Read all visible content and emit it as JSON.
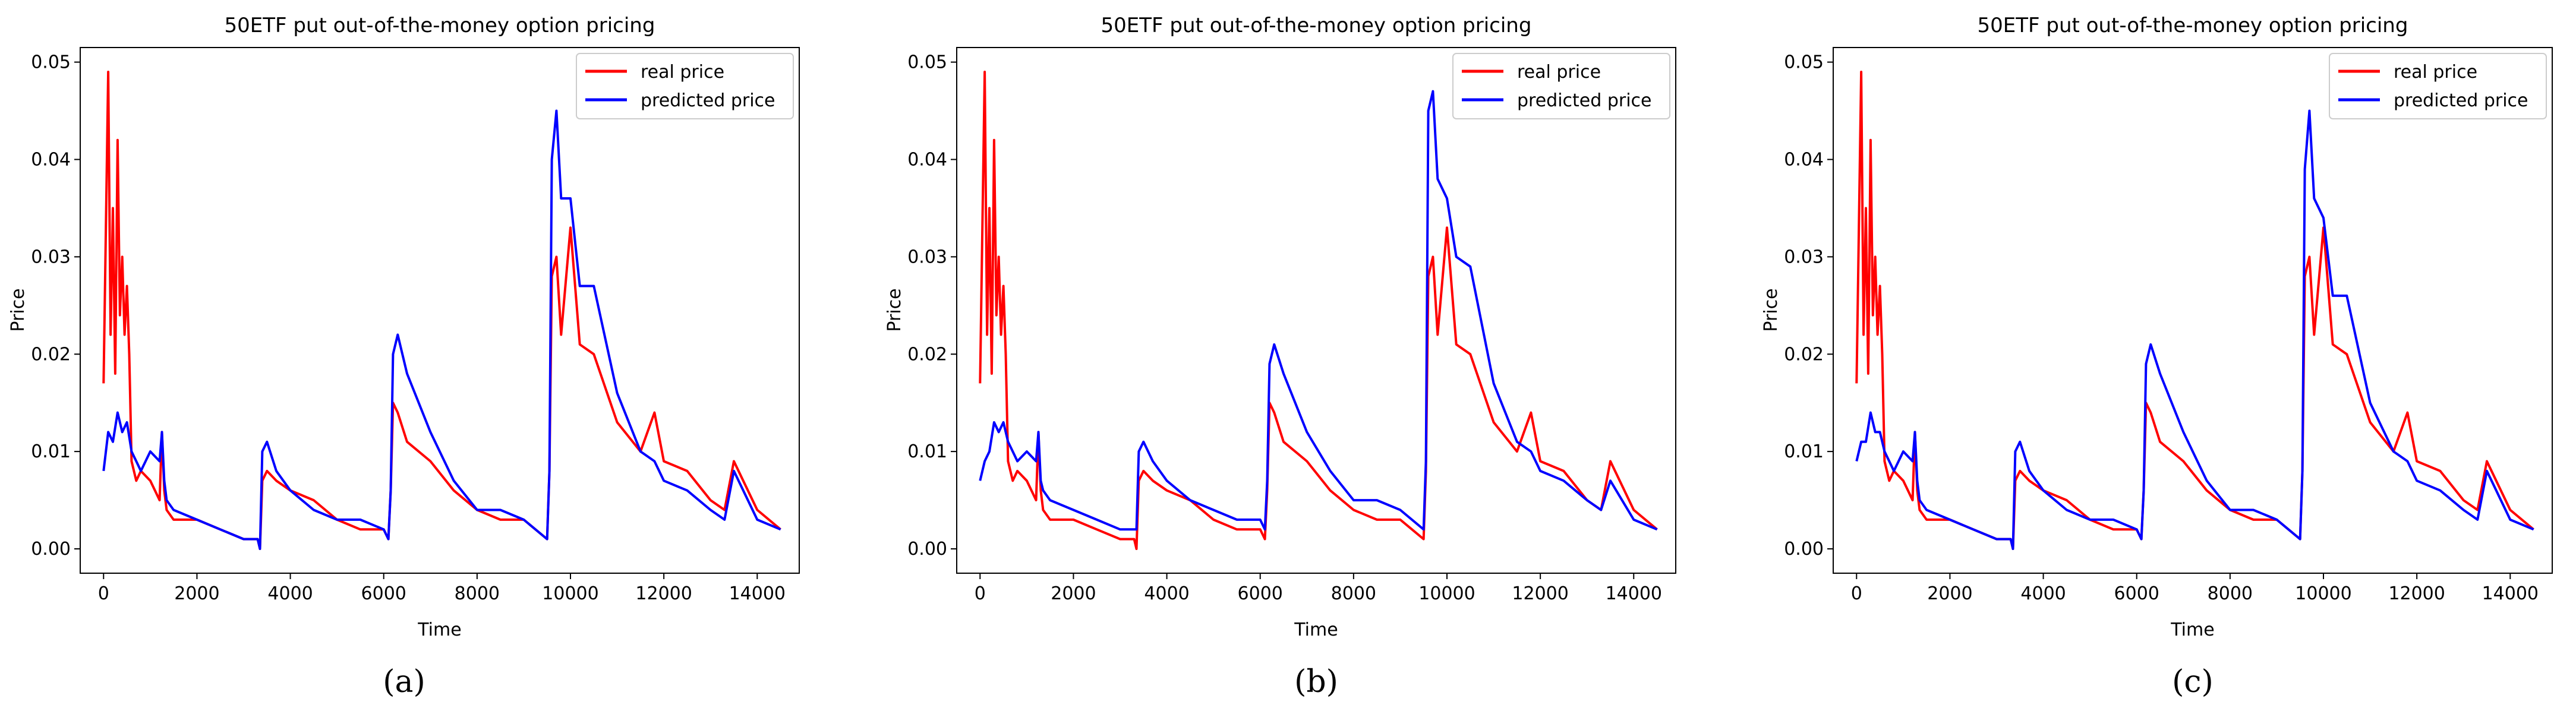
{
  "figure": {
    "panel_labels": [
      "(a)",
      "(b)",
      "(c)"
    ]
  },
  "colors": {
    "real": "#ff0000",
    "predicted": "#0000ff"
  },
  "chart_data": [
    {
      "type": "line",
      "title": "50ETF put out-of-the-money option pricing",
      "xlabel": "Time",
      "ylabel": "Price",
      "xlim": [
        -500,
        14900
      ],
      "ylim": [
        -0.0025,
        0.0515
      ],
      "xticks": [
        0,
        2000,
        4000,
        6000,
        8000,
        10000,
        12000,
        14000
      ],
      "yticks": [
        0.0,
        0.01,
        0.02,
        0.03,
        0.04,
        0.05
      ],
      "legend_loc": "top-right",
      "series": [
        {
          "name": "real price",
          "color": "#ff0000",
          "x": [
            0,
            100,
            150,
            200,
            250,
            300,
            350,
            400,
            450,
            500,
            550,
            600,
            700,
            800,
            1000,
            1200,
            1250,
            1300,
            1350,
            1500,
            2000,
            2500,
            3000,
            3300,
            3350,
            3400,
            3500,
            3700,
            4000,
            4500,
            5000,
            5500,
            6000,
            6100,
            6150,
            6200,
            6300,
            6500,
            7000,
            7500,
            8000,
            8500,
            9000,
            9500,
            9550,
            9600,
            9700,
            9800,
            10000,
            10200,
            10500,
            11000,
            11500,
            11800,
            12000,
            12500,
            13000,
            13300,
            13500,
            14000,
            14500
          ],
          "y": [
            0.017,
            0.049,
            0.022,
            0.035,
            0.018,
            0.042,
            0.024,
            0.03,
            0.022,
            0.027,
            0.02,
            0.009,
            0.007,
            0.008,
            0.007,
            0.005,
            0.012,
            0.006,
            0.004,
            0.003,
            0.003,
            0.002,
            0.001,
            0.001,
            0.0,
            0.007,
            0.008,
            0.007,
            0.006,
            0.005,
            0.003,
            0.002,
            0.002,
            0.001,
            0.006,
            0.015,
            0.014,
            0.011,
            0.009,
            0.006,
            0.004,
            0.003,
            0.003,
            0.001,
            0.008,
            0.028,
            0.03,
            0.022,
            0.033,
            0.021,
            0.02,
            0.013,
            0.01,
            0.014,
            0.009,
            0.008,
            0.005,
            0.004,
            0.009,
            0.004,
            0.002
          ]
        },
        {
          "name": "predicted price",
          "color": "#0000ff",
          "x": [
            0,
            100,
            200,
            300,
            400,
            500,
            600,
            700,
            800,
            1000,
            1200,
            1250,
            1300,
            1350,
            1500,
            2000,
            2500,
            3000,
            3300,
            3350,
            3400,
            3500,
            3700,
            4000,
            4500,
            5000,
            5500,
            6000,
            6100,
            6150,
            6200,
            6300,
            6500,
            7000,
            7500,
            8000,
            8500,
            9000,
            9500,
            9550,
            9600,
            9700,
            9800,
            10000,
            10200,
            10500,
            11000,
            11500,
            11800,
            12000,
            12500,
            13000,
            13300,
            13500,
            14000,
            14500
          ],
          "y": [
            0.008,
            0.012,
            0.011,
            0.014,
            0.012,
            0.013,
            0.01,
            0.009,
            0.008,
            0.01,
            0.009,
            0.012,
            0.007,
            0.005,
            0.004,
            0.003,
            0.002,
            0.001,
            0.001,
            0.0,
            0.01,
            0.011,
            0.008,
            0.006,
            0.004,
            0.003,
            0.003,
            0.002,
            0.001,
            0.006,
            0.02,
            0.022,
            0.018,
            0.012,
            0.007,
            0.004,
            0.004,
            0.003,
            0.001,
            0.008,
            0.04,
            0.045,
            0.036,
            0.036,
            0.027,
            0.027,
            0.016,
            0.01,
            0.009,
            0.007,
            0.006,
            0.004,
            0.003,
            0.008,
            0.003,
            0.002
          ]
        }
      ]
    },
    {
      "type": "line",
      "title": "50ETF put out-of-the-money option pricing",
      "xlabel": "Time",
      "ylabel": "Price",
      "xlim": [
        -500,
        14900
      ],
      "ylim": [
        -0.0025,
        0.0515
      ],
      "xticks": [
        0,
        2000,
        4000,
        6000,
        8000,
        10000,
        12000,
        14000
      ],
      "yticks": [
        0.0,
        0.01,
        0.02,
        0.03,
        0.04,
        0.05
      ],
      "legend_loc": "top-right",
      "series": [
        {
          "name": "real price",
          "color": "#ff0000",
          "x": [
            0,
            100,
            150,
            200,
            250,
            300,
            350,
            400,
            450,
            500,
            550,
            600,
            700,
            800,
            1000,
            1200,
            1250,
            1300,
            1350,
            1500,
            2000,
            2500,
            3000,
            3300,
            3350,
            3400,
            3500,
            3700,
            4000,
            4500,
            5000,
            5500,
            6000,
            6100,
            6150,
            6200,
            6300,
            6500,
            7000,
            7500,
            8000,
            8500,
            9000,
            9500,
            9550,
            9600,
            9700,
            9800,
            10000,
            10200,
            10500,
            11000,
            11500,
            11800,
            12000,
            12500,
            13000,
            13300,
            13500,
            14000,
            14500
          ],
          "y": [
            0.017,
            0.049,
            0.022,
            0.035,
            0.018,
            0.042,
            0.024,
            0.03,
            0.022,
            0.027,
            0.02,
            0.009,
            0.007,
            0.008,
            0.007,
            0.005,
            0.012,
            0.006,
            0.004,
            0.003,
            0.003,
            0.002,
            0.001,
            0.001,
            0.0,
            0.007,
            0.008,
            0.007,
            0.006,
            0.005,
            0.003,
            0.002,
            0.002,
            0.001,
            0.006,
            0.015,
            0.014,
            0.011,
            0.009,
            0.006,
            0.004,
            0.003,
            0.003,
            0.001,
            0.008,
            0.028,
            0.03,
            0.022,
            0.033,
            0.021,
            0.02,
            0.013,
            0.01,
            0.014,
            0.009,
            0.008,
            0.005,
            0.004,
            0.009,
            0.004,
            0.002
          ]
        },
        {
          "name": "predicted price",
          "color": "#0000ff",
          "x": [
            0,
            100,
            200,
            300,
            400,
            500,
            600,
            700,
            800,
            1000,
            1200,
            1250,
            1300,
            1350,
            1500,
            2000,
            2500,
            3000,
            3300,
            3350,
            3400,
            3500,
            3700,
            4000,
            4500,
            5000,
            5500,
            6000,
            6100,
            6150,
            6200,
            6300,
            6500,
            7000,
            7500,
            8000,
            8500,
            9000,
            9500,
            9550,
            9600,
            9700,
            9800,
            10000,
            10200,
            10500,
            11000,
            11500,
            11800,
            12000,
            12500,
            13000,
            13300,
            13500,
            14000,
            14500
          ],
          "y": [
            0.007,
            0.009,
            0.01,
            0.013,
            0.012,
            0.013,
            0.011,
            0.01,
            0.009,
            0.01,
            0.009,
            0.012,
            0.007,
            0.006,
            0.005,
            0.004,
            0.003,
            0.002,
            0.002,
            0.002,
            0.01,
            0.011,
            0.009,
            0.007,
            0.005,
            0.004,
            0.003,
            0.003,
            0.002,
            0.007,
            0.019,
            0.021,
            0.018,
            0.012,
            0.008,
            0.005,
            0.005,
            0.004,
            0.002,
            0.009,
            0.045,
            0.047,
            0.038,
            0.036,
            0.03,
            0.029,
            0.017,
            0.011,
            0.01,
            0.008,
            0.007,
            0.005,
            0.004,
            0.007,
            0.003,
            0.002
          ]
        }
      ]
    },
    {
      "type": "line",
      "title": "50ETF put out-of-the-money option pricing",
      "xlabel": "Time",
      "ylabel": "Price",
      "xlim": [
        -500,
        14900
      ],
      "ylim": [
        -0.0025,
        0.0515
      ],
      "xticks": [
        0,
        2000,
        4000,
        6000,
        8000,
        10000,
        12000,
        14000
      ],
      "yticks": [
        0.0,
        0.01,
        0.02,
        0.03,
        0.04,
        0.05
      ],
      "legend_loc": "top-right",
      "series": [
        {
          "name": "real price",
          "color": "#ff0000",
          "x": [
            0,
            100,
            150,
            200,
            250,
            300,
            350,
            400,
            450,
            500,
            550,
            600,
            700,
            800,
            1000,
            1200,
            1250,
            1300,
            1350,
            1500,
            2000,
            2500,
            3000,
            3300,
            3350,
            3400,
            3500,
            3700,
            4000,
            4500,
            5000,
            5500,
            6000,
            6100,
            6150,
            6200,
            6300,
            6500,
            7000,
            7500,
            8000,
            8500,
            9000,
            9500,
            9550,
            9600,
            9700,
            9800,
            10000,
            10200,
            10500,
            11000,
            11500,
            11800,
            12000,
            12500,
            13000,
            13300,
            13500,
            14000,
            14500
          ],
          "y": [
            0.017,
            0.049,
            0.022,
            0.035,
            0.018,
            0.042,
            0.024,
            0.03,
            0.022,
            0.027,
            0.02,
            0.009,
            0.007,
            0.008,
            0.007,
            0.005,
            0.012,
            0.006,
            0.004,
            0.003,
            0.003,
            0.002,
            0.001,
            0.001,
            0.0,
            0.007,
            0.008,
            0.007,
            0.006,
            0.005,
            0.003,
            0.002,
            0.002,
            0.001,
            0.006,
            0.015,
            0.014,
            0.011,
            0.009,
            0.006,
            0.004,
            0.003,
            0.003,
            0.001,
            0.008,
            0.028,
            0.03,
            0.022,
            0.033,
            0.021,
            0.02,
            0.013,
            0.01,
            0.014,
            0.009,
            0.008,
            0.005,
            0.004,
            0.009,
            0.004,
            0.002
          ]
        },
        {
          "name": "predicted price",
          "color": "#0000ff",
          "x": [
            0,
            100,
            200,
            300,
            400,
            500,
            600,
            700,
            800,
            1000,
            1200,
            1250,
            1300,
            1350,
            1500,
            2000,
            2500,
            3000,
            3300,
            3350,
            3400,
            3500,
            3700,
            4000,
            4500,
            5000,
            5500,
            6000,
            6100,
            6150,
            6200,
            6300,
            6500,
            7000,
            7500,
            8000,
            8500,
            9000,
            9500,
            9550,
            9600,
            9700,
            9800,
            10000,
            10200,
            10500,
            11000,
            11500,
            11800,
            12000,
            12500,
            13000,
            13300,
            13500,
            14000,
            14500
          ],
          "y": [
            0.009,
            0.011,
            0.011,
            0.014,
            0.012,
            0.012,
            0.01,
            0.009,
            0.008,
            0.01,
            0.009,
            0.012,
            0.007,
            0.005,
            0.004,
            0.003,
            0.002,
            0.001,
            0.001,
            0.0,
            0.01,
            0.011,
            0.008,
            0.006,
            0.004,
            0.003,
            0.003,
            0.002,
            0.001,
            0.006,
            0.019,
            0.021,
            0.018,
            0.012,
            0.007,
            0.004,
            0.004,
            0.003,
            0.001,
            0.008,
            0.039,
            0.045,
            0.036,
            0.034,
            0.026,
            0.026,
            0.015,
            0.01,
            0.009,
            0.007,
            0.006,
            0.004,
            0.003,
            0.008,
            0.003,
            0.002
          ]
        }
      ]
    }
  ]
}
